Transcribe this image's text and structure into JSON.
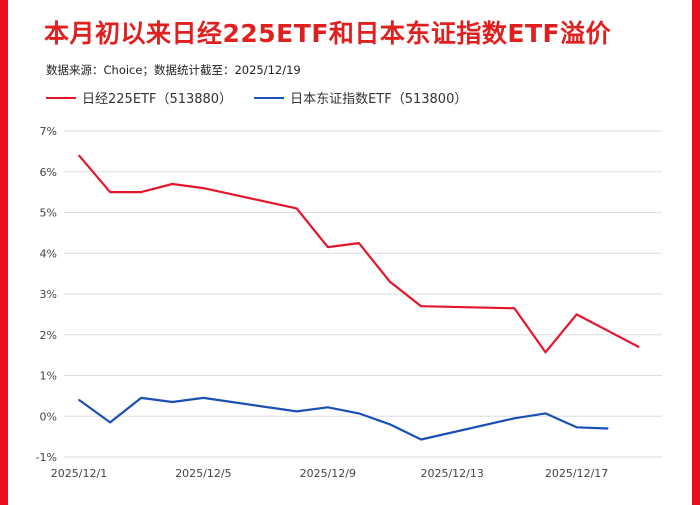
{
  "colors": {
    "brand_bar": "#ea0f1c",
    "title": "#e0201f",
    "series1": "#e3162b",
    "series2": "#1a4fb8",
    "grid": "#dedede"
  },
  "header": {
    "title": "本月初以来日经225ETF和日本东证指数ETF溢价",
    "source": "数据来源：Choice；数据统计截至：2025/12/19"
  },
  "chart_data": {
    "type": "line",
    "title": "本月初以来日经225ETF和日本东证指数ETF溢价",
    "xlabel": "",
    "ylabel": "",
    "ylim": [
      -1,
      7
    ],
    "yticks": [
      "-1%",
      "0%",
      "1%",
      "2%",
      "3%",
      "4%",
      "5%",
      "6%",
      "7%"
    ],
    "xtick_labels": [
      "2025/12/1",
      "2025/12/5",
      "2025/12/9",
      "2025/12/13",
      "2025/12/17"
    ],
    "grid": true,
    "legend_position": "top-left",
    "series": [
      {
        "name": "日经225ETF（513880）",
        "points": [
          [
            "2025/12/1",
            6.4
          ],
          [
            "2025/12/2",
            5.5
          ],
          [
            "2025/12/3",
            5.5
          ],
          [
            "2025/12/4",
            5.7
          ],
          [
            "2025/12/5",
            5.6
          ],
          [
            "2025/12/8",
            5.1
          ],
          [
            "2025/12/9",
            4.15
          ],
          [
            "2025/12/10",
            4.25
          ],
          [
            "2025/12/11",
            3.3
          ],
          [
            "2025/12/12",
            2.7
          ],
          [
            "2025/12/15",
            2.65
          ],
          [
            "2025/12/16",
            1.57
          ],
          [
            "2025/12/17",
            2.5
          ],
          [
            "2025/12/18",
            2.1
          ],
          [
            "2025/12/19",
            1.7
          ]
        ]
      },
      {
        "name": "日本东证指数ETF（513800）",
        "points": [
          [
            "2025/12/1",
            0.4
          ],
          [
            "2025/12/2",
            -0.15
          ],
          [
            "2025/12/3",
            0.45
          ],
          [
            "2025/12/4",
            0.35
          ],
          [
            "2025/12/5",
            0.45
          ],
          [
            "2025/12/8",
            0.12
          ],
          [
            "2025/12/9",
            0.22
          ],
          [
            "2025/12/10",
            0.07
          ],
          [
            "2025/12/11",
            -0.2
          ],
          [
            "2025/12/12",
            -0.57
          ],
          [
            "2025/12/15",
            -0.05
          ],
          [
            "2025/12/16",
            0.07
          ],
          [
            "2025/12/17",
            -0.27
          ],
          [
            "2025/12/18",
            -0.3
          ]
        ]
      }
    ]
  }
}
